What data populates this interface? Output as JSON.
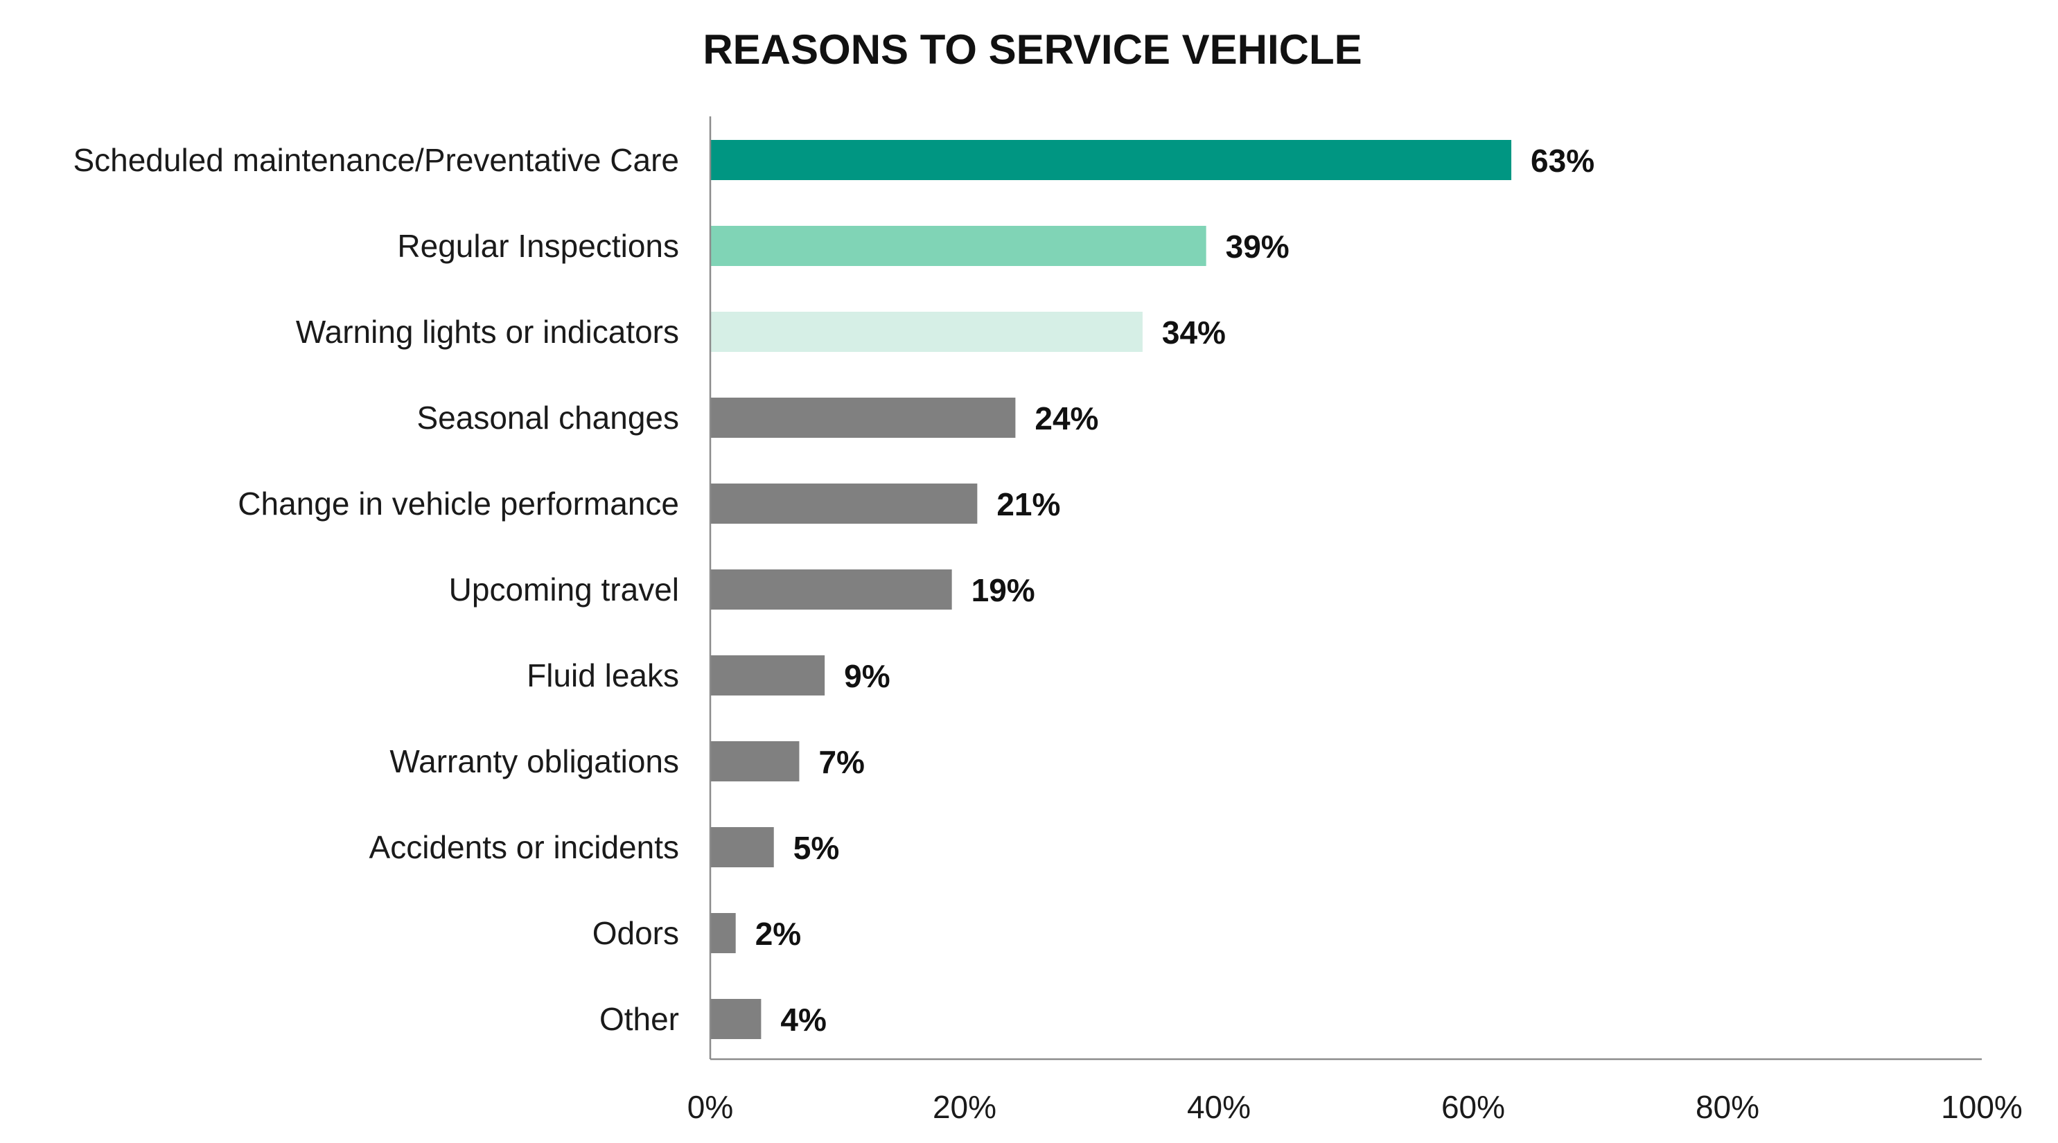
{
  "chart_data": {
    "type": "bar",
    "orientation": "horizontal",
    "title": "REASONS TO SERVICE VEHICLE",
    "xlabel": "",
    "ylabel": "",
    "xlim": [
      0,
      100
    ],
    "x_ticks": [
      "0%",
      "20%",
      "40%",
      "60%",
      "80%",
      "100%"
    ],
    "x_tick_values": [
      0,
      20,
      40,
      60,
      80,
      100
    ],
    "grid": false,
    "legend": "none",
    "categories": [
      "Scheduled maintenance/Preventative Care",
      "Regular Inspections",
      "Warning lights or indicators",
      "Seasonal changes",
      "Change in vehicle performance",
      "Upcoming travel",
      "Fluid leaks",
      "Warranty obligations",
      "Accidents or incidents",
      "Odors",
      "Other"
    ],
    "values": [
      63,
      39,
      34,
      24,
      21,
      19,
      9,
      7,
      5,
      2,
      4
    ],
    "value_labels": [
      "63%",
      "39%",
      "34%",
      "24%",
      "21%",
      "19%",
      "9%",
      "7%",
      "5%",
      "2%",
      "4%"
    ],
    "bar_colors": [
      "#009682",
      "#80d4b6",
      "#d6efe6",
      "#808080",
      "#808080",
      "#808080",
      "#808080",
      "#808080",
      "#808080",
      "#808080",
      "#808080"
    ]
  }
}
